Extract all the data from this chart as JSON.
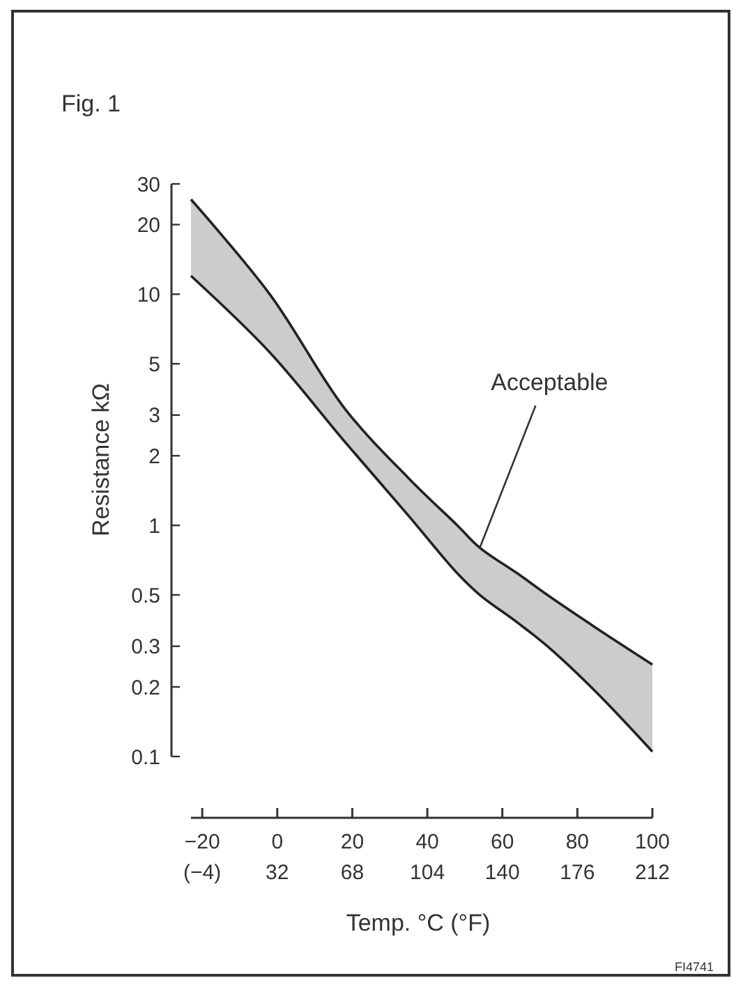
{
  "chart_data": {
    "type": "line",
    "title": "Fig. 1",
    "xlabel": "Temp. °C (°F)",
    "ylabel": "Resistance kΩ",
    "x": [
      -23,
      -2,
      18,
      35,
      48,
      54,
      64,
      72,
      85,
      100
    ],
    "series": [
      {
        "color": "#222222",
        "values": [
          25.7,
          10,
          3.2,
          1.6,
          1.0,
          0.8,
          0.62,
          0.5,
          0.36,
          0.25
        ],
        "lower": [
          12,
          5.6,
          2.3,
          1.1,
          0.62,
          0.5,
          0.38,
          0.3,
          0.19,
          0.105
        ],
        "upper": [
          25.7,
          10,
          3.2,
          1.6,
          1.0,
          0.8,
          0.62,
          0.5,
          0.36,
          0.25
        ]
      },
      {
        "color": "#222222",
        "values": [
          12,
          5.6,
          2.3,
          1.1,
          0.62,
          0.5,
          0.38,
          0.3,
          0.19,
          0.105
        ]
      }
    ],
    "log": "y",
    "xlim": [
      -23,
      100
    ],
    "xticks": [
      {
        "value": -20,
        "label": "−20"
      },
      0,
      20,
      40,
      60,
      80,
      100
    ],
    "x2lim": [
      -9.4,
      212
    ],
    "x2ticks": [
      {
        "value": -4,
        "label": "(−4)"
      },
      32,
      68,
      104,
      140,
      176,
      212
    ],
    "ylim": [
      0.1,
      30
    ],
    "yticks": [
      0.1,
      0.2,
      0.3,
      0.5,
      1,
      2,
      3,
      5,
      10,
      20,
      30
    ],
    "annotations": [
      {
        "text": "Acceptable",
        "x": 54,
        "y": 0.8
      },
      "FI4741"
    ]
  }
}
